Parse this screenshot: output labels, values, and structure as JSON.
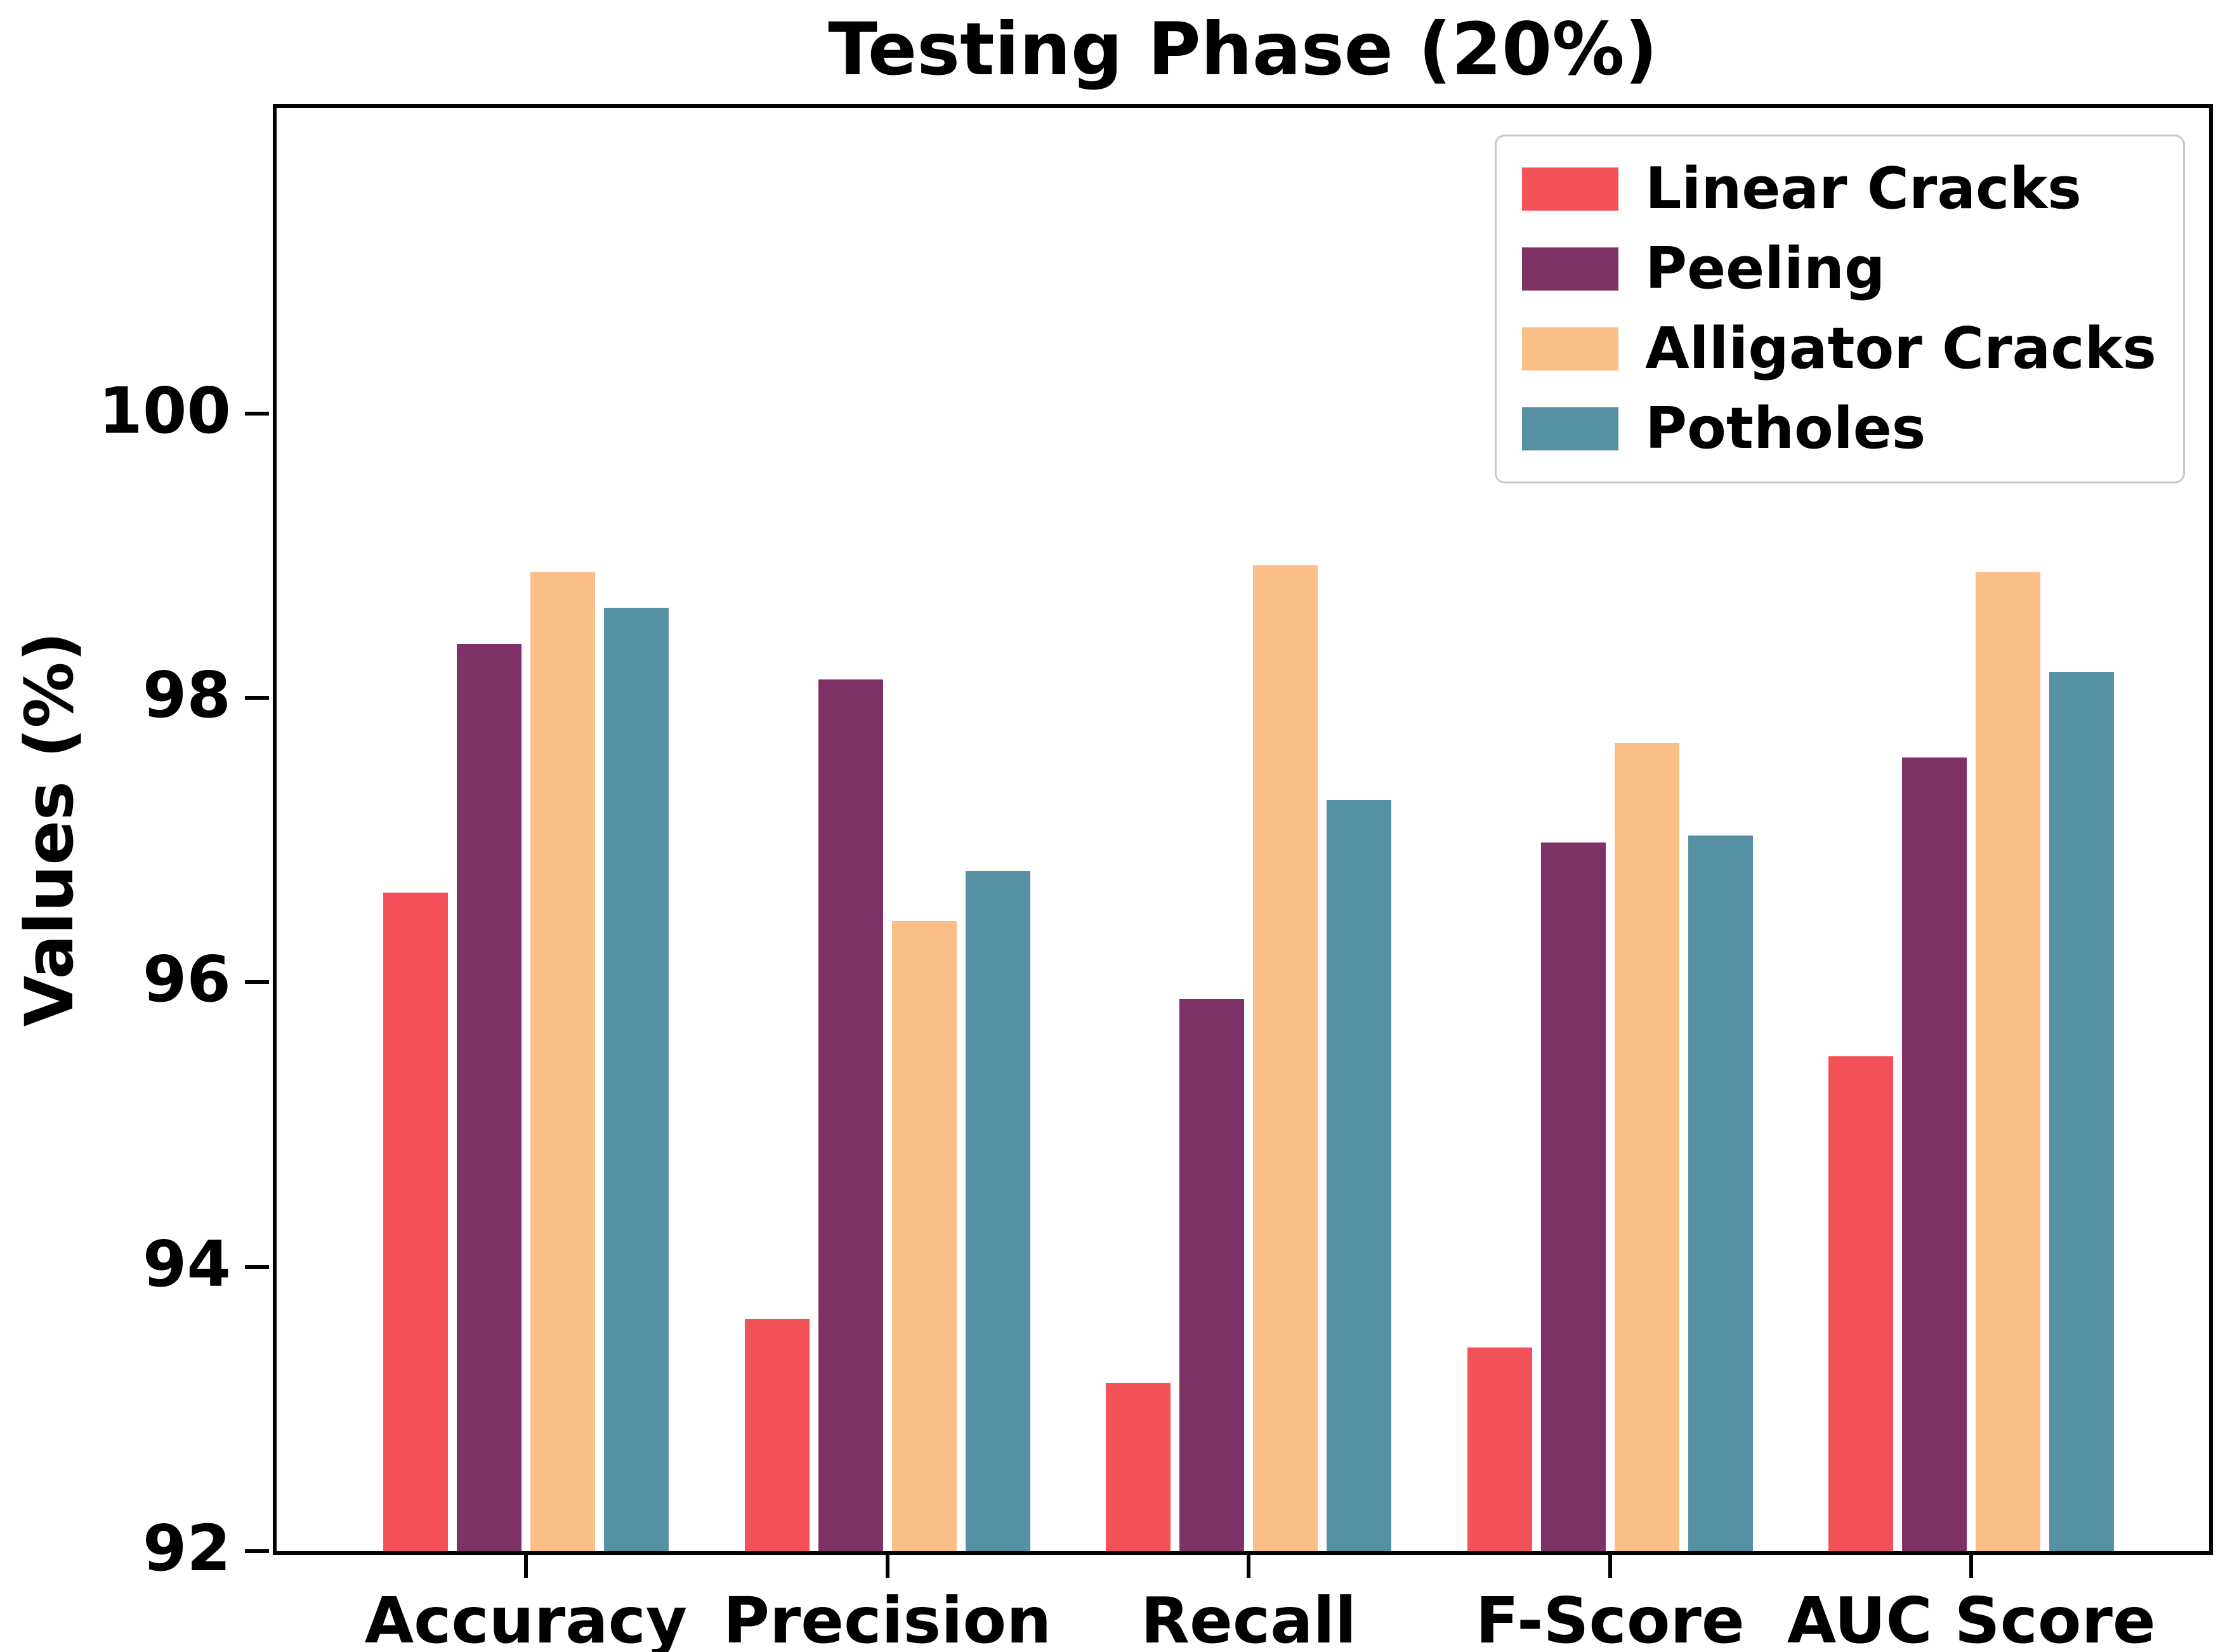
{
  "chart_data": {
    "type": "bar",
    "title": "Testing Phase (20%)",
    "xlabel": "",
    "ylabel": "Values (%)",
    "categories": [
      "Accuracy",
      "Precision",
      "Recall",
      "F-Score",
      "AUC Score"
    ],
    "series": [
      {
        "name": "Linear Cracks",
        "color": "#F25158",
        "values": [
          96.65,
          93.65,
          93.2,
          93.45,
          95.5
        ]
      },
      {
        "name": "Peeling",
        "color": "#7D3164",
        "values": [
          98.4,
          98.15,
          95.9,
          97.0,
          97.6
        ]
      },
      {
        "name": "Alligator Cracks",
        "color": "#FBBE86",
        "values": [
          98.9,
          96.45,
          98.95,
          97.7,
          98.9
        ]
      },
      {
        "name": "Potholes",
        "color": "#5690A3",
        "values": [
          98.65,
          96.8,
          97.3,
          97.05,
          98.2
        ]
      }
    ],
    "yticks": [
      92,
      94,
      96,
      98,
      100
    ],
    "ylim": [
      92,
      102.15
    ],
    "legend_position": "upper right",
    "grid": false,
    "bar_edge_color": "#ffffff",
    "axis_color": "#000000",
    "background_color": "#ffffff"
  }
}
